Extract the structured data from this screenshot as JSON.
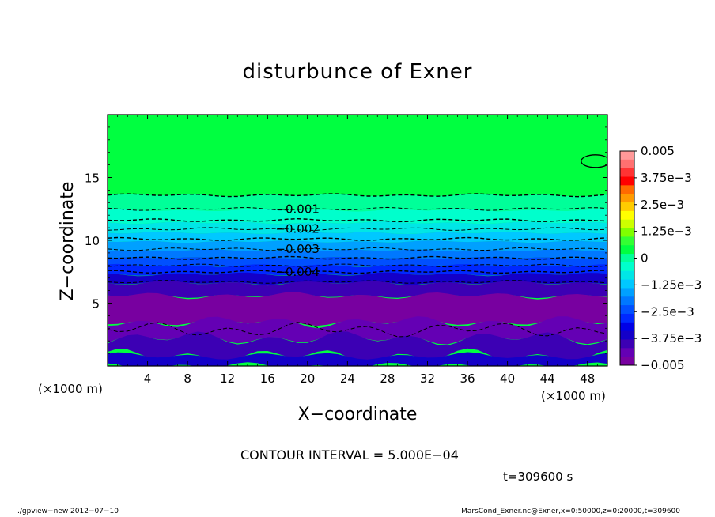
{
  "chart_data": {
    "type": "heatmap",
    "title": "disturbunce of Exner",
    "xlabel": "X−coordinate",
    "ylabel": "Z−coordinate",
    "x_unit_left": "(×1000 m)",
    "x_unit_right": "(×1000 m)",
    "xlim": [
      0,
      50
    ],
    "ylim": [
      0,
      20
    ],
    "x_ticks": [
      "4",
      "8",
      "12",
      "16",
      "20",
      "24",
      "28",
      "32",
      "36",
      "40",
      "44",
      "48"
    ],
    "x_tick_values": [
      4,
      8,
      12,
      16,
      20,
      24,
      28,
      32,
      36,
      40,
      44,
      48
    ],
    "y_ticks": [
      "5",
      "10",
      "15"
    ],
    "y_tick_values": [
      5,
      10,
      15
    ],
    "contour_labels": [
      {
        "text": "−0.001",
        "x": 19,
        "z": 12.5
      },
      {
        "text": "−0.002",
        "x": 19,
        "z": 10.9
      },
      {
        "text": "−0.003",
        "x": 19,
        "z": 9.3
      },
      {
        "text": "−0.004",
        "x": 19,
        "z": 7.5
      }
    ],
    "colorbar": {
      "labels": [
        "0.005",
        "3.75e−3",
        "2.5e−3",
        "1.25e−3",
        "0",
        "−1.25e−3",
        "−2.5e−3",
        "−3.75e−3",
        "−0.005"
      ],
      "colors": [
        "#ff9999",
        "#ff7070",
        "#ff3333",
        "#ff0000",
        "#ff6a00",
        "#ff9a00",
        "#ffcc00",
        "#ffff00",
        "#ccff00",
        "#80ff00",
        "#33ff33",
        "#00ff40",
        "#00ff99",
        "#00ffcc",
        "#00e6e6",
        "#00c8ff",
        "#00a0ff",
        "#0078ff",
        "#0050ff",
        "#0028ff",
        "#0000e6",
        "#1400c8",
        "#3c00b4",
        "#6400b4",
        "#7800a0"
      ]
    }
  },
  "annotations": {
    "contour_interval": "CONTOUR INTERVAL = 5.000E−04",
    "time": "t=309600 s",
    "footer_left": "./gpview−new   2012−07−10",
    "footer_right": "MarsCond_Exner.nc@Exner,x=0:50000,z=0:20000,t=309600"
  }
}
